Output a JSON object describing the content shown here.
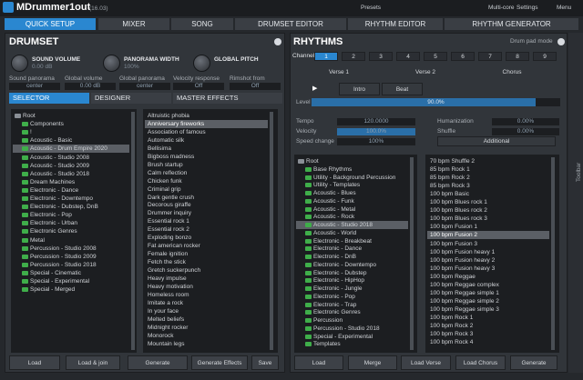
{
  "header": {
    "title": "MDrummer1out",
    "version": "(16.03)",
    "presets": "Presets",
    "multicore": "Multi-core",
    "settings": "Settings",
    "menu": "Menu"
  },
  "tabs": [
    "QUICK SETUP",
    "MIXER",
    "SONG",
    "DRUMSET EDITOR",
    "RHYTHM EDITOR",
    "RHYTHM GENERATOR"
  ],
  "drumset": {
    "title": "DRUMSET",
    "knobs": [
      {
        "label": "SOUND VOLUME",
        "value": "0.00 dB"
      },
      {
        "label": "PANORAMA WIDTH",
        "value": "100%"
      },
      {
        "label": "GLOBAL PITCH"
      }
    ],
    "params": [
      {
        "label": "Sound panorama",
        "value": "center"
      },
      {
        "label": "Global volume",
        "value": "0.00 dB"
      },
      {
        "label": "Global panorama",
        "value": "center"
      },
      {
        "label": "Velocity response",
        "value": "Off"
      },
      {
        "label": "Rimshot from",
        "value": "Off"
      }
    ],
    "subtabs": [
      "SELECTOR",
      "DESIGNER",
      "MASTER EFFECTS"
    ],
    "tree": [
      "Root",
      "Components",
      "!",
      "Acoustic - Basic",
      "Acoustic - Drum Empire 2020",
      "Acoustic - Studio 2008",
      "Acoustic - Studio 2009",
      "Acoustic - Studio 2018",
      "Dream Machines",
      "Electronic - Dance",
      "Electronic - Downtempo",
      "Electronic - Dubstep, DnB",
      "Electronic - Pop",
      "Electronic - Urban",
      "Electronic Genres",
      "Metal",
      "Percussion - Studio 2008",
      "Percussion - Studio 2009",
      "Percussion - Studio 2018",
      "Special - Cinematic",
      "Special - Experimental",
      "Special - Merged"
    ],
    "list": [
      "Altruistic phobia",
      "Anniversary fireworks",
      "Association of famous",
      "Automatic silk",
      "Bellisima",
      "Bigboss madness",
      "Brush startup",
      "Calm reflection",
      "Chicken funk",
      "Criminal grip",
      "Dark gentle crush",
      "Decorous giraffe",
      "Drummer inquiry",
      "Essential rock 1",
      "Essential rock 2",
      "Exploding bonzo",
      "Fat american rocker",
      "Female ignition",
      "Fetch the stick",
      "Gretch suckerpunch",
      "Heavy impulse",
      "Heavy motivation",
      "Homeless room",
      "Imitate a rock",
      "In your face",
      "Melted beliefs",
      "Midnight rocker",
      "Monorock",
      "Mountain legs"
    ],
    "buttons": [
      "Load",
      "Load & join",
      "Generate",
      "Generate Effects",
      "Save"
    ]
  },
  "rhythms": {
    "title": "RHYTHMS",
    "drum_pad_mode": "Drum pad mode",
    "channel_label": "Channel",
    "channels": [
      "1",
      "2",
      "3",
      "4",
      "5",
      "6",
      "7",
      "8",
      "9"
    ],
    "sections": [
      "Verse 1",
      "Verse 2",
      "Chorus"
    ],
    "parts": [
      "Intro",
      "Beat"
    ],
    "level": {
      "label": "Level",
      "value": "90.0%"
    },
    "controls": [
      {
        "label": "Tempo",
        "value": "120.0000"
      },
      {
        "label": "Velocity",
        "value": "100.0%"
      },
      {
        "label": "Speed change",
        "value": "100%"
      },
      {
        "label": "Humanization",
        "value": "0.00%"
      },
      {
        "label": "Shuffle",
        "value": "0.00%"
      }
    ],
    "additional": "Additional",
    "tree": [
      "Root",
      "Base Rhythms",
      "Utility - Background Percussion",
      "Utility - Templates",
      "Acoustic - Blues",
      "Acoustic - Funk",
      "Acoustic - Metal",
      "Acoustic - Rock",
      "Acoustic - Studio 2018",
      "Acoustic - World",
      "Electronic - Breakbeat",
      "Electronic - Dance",
      "Electronic - DnB",
      "Electronic - Downtempo",
      "Electronic - Dubstep",
      "Electronic - HipHop",
      "Electronic - Jungle",
      "Electronic - Pop",
      "Electronic - Trap",
      "Electronic Genres",
      "Percussion",
      "Percussion - Studio 2018",
      "Special - Experimental",
      "Templates"
    ],
    "list": [
      "70 bpm Shuffle 2",
      "85 bpm Rock 1",
      "85 bpm Rock 2",
      "85 bpm Rock 3",
      "100 bpm Basic",
      "100 bpm Blues rock 1",
      "100 bpm Blues rock 2",
      "100 bpm Blues rock 3",
      "100 bpm Fusion 1",
      "100 bpm Fusion 2",
      "100 bpm Fusion 3",
      "100 bpm Fusion heavy 1",
      "100 bpm Fusion heavy 2",
      "100 bpm Fusion heavy 3",
      "100 bpm Reggae",
      "100 bpm Reggae complex",
      "100 bpm Reggae simple 1",
      "100 bpm Reggae simple 2",
      "100 bpm Reggae simple 3",
      "100 bpm Rock 1",
      "100 bpm Rock 2",
      "100 bpm Rock 3",
      "100 bpm Rock 4"
    ],
    "buttons": [
      "Load",
      "Merge",
      "Load Verse",
      "Load Chorus",
      "Generate"
    ]
  },
  "toolbar": "Toolbar"
}
